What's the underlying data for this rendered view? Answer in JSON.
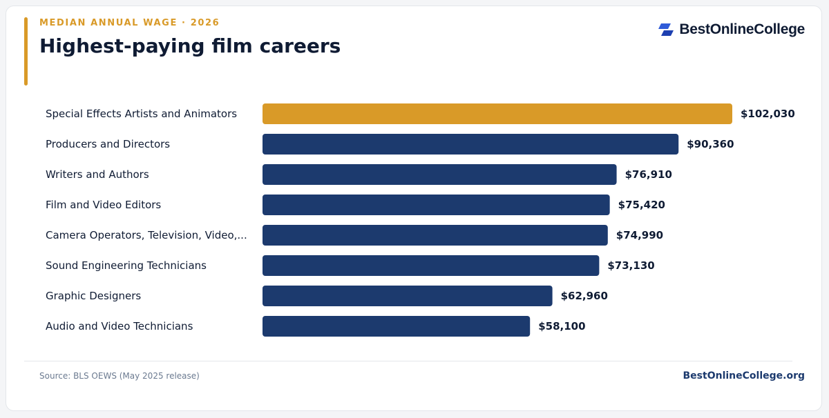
{
  "header": {
    "eyebrow": "MEDIAN ANNUAL WAGE · 2026",
    "title": "Highest-paying film careers",
    "brand": "BestOnlineCollege",
    "brand_icon": "parallelogram-logo-icon"
  },
  "colors": {
    "accent": "#d99a28",
    "bar": "#1c3a6e",
    "highlight": "#d99a28",
    "text_dark": "#0f1b33",
    "text_muted": "#6b7a90"
  },
  "chart_data": {
    "type": "bar",
    "orientation": "horizontal",
    "title": "Highest-paying film careers",
    "subtitle": "MEDIAN ANNUAL WAGE · 2026",
    "categories": [
      "Special Effects Artists and Animators",
      "Producers and Directors",
      "Writers and Authors",
      "Film and Video Editors",
      "Camera Operators, Television, Video,...",
      "Sound Engineering Technicians",
      "Graphic Designers",
      "Audio and Video Technicians"
    ],
    "values": [
      102030,
      90360,
      76910,
      75420,
      74990,
      73130,
      62960,
      58100
    ],
    "value_labels": [
      "$102,030",
      "$90,360",
      "$76,910",
      "$75,420",
      "$74,990",
      "$73,130",
      "$62,960",
      "$58,100"
    ],
    "highlight_index": 0,
    "xlim": [
      0,
      102030
    ],
    "grid": false,
    "legend": "none"
  },
  "footer": {
    "source": "Source: BLS OEWS (May 2025 release)",
    "brand": "BestOnlineCollege.org"
  }
}
